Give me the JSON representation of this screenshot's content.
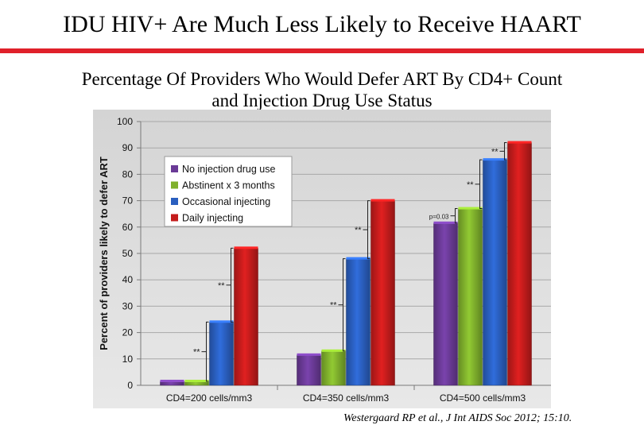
{
  "header": {
    "title": "IDU HIV+ Are Much Less Likely to Receive HAART",
    "accent_color": "#e0202a"
  },
  "chart_data": {
    "type": "bar",
    "title": "Percentage Of Providers Who Would Defer ART By CD4+ Count and Injection Drug Use Status",
    "title_lines": [
      "Percentage Of Providers Who Would Defer ART By CD4+ Count",
      "and Injection Drug Use Status"
    ],
    "ylabel": "Percent of providers likely to defer  ART",
    "xlabel": "",
    "ylim": [
      0,
      100
    ],
    "yticks": [
      0,
      10,
      20,
      30,
      40,
      50,
      60,
      70,
      80,
      90,
      100
    ],
    "grid": true,
    "legend_position": "top-left",
    "categories": [
      "CD4=200 cells/mm3",
      "CD4=350 cells/mm3",
      "CD4=500 cells/mm3"
    ],
    "series": [
      {
        "name": "No injection drug use",
        "color": "#6a3a96",
        "values": [
          1.5,
          11.5,
          61.5
        ]
      },
      {
        "name": "Abstinent x 3 months",
        "color": "#7fb02c",
        "values": [
          1.5,
          13,
          67
        ]
      },
      {
        "name": "Occasional injecting",
        "color": "#2a5fbf",
        "values": [
          24,
          48,
          85.5
        ]
      },
      {
        "name": "Daily injecting",
        "color": "#c41c1c",
        "values": [
          52,
          70,
          92
        ]
      }
    ],
    "annotations": [
      {
        "text": "**",
        "category": 0,
        "from_series": 1,
        "to_series": 2
      },
      {
        "text": "**",
        "category": 0,
        "from_series": 2,
        "to_series": 3
      },
      {
        "text": "**",
        "category": 1,
        "from_series": 1,
        "to_series": 2
      },
      {
        "text": "**",
        "category": 1,
        "from_series": 2,
        "to_series": 3
      },
      {
        "text": "p=0.03",
        "category": 2,
        "from_series": 0,
        "to_series": 1
      },
      {
        "text": "**",
        "category": 2,
        "from_series": 1,
        "to_series": 2
      },
      {
        "text": "**",
        "category": 2,
        "from_series": 2,
        "to_series": 3
      }
    ]
  },
  "citation": {
    "authors": "Westergaard RP et al.,",
    "journal": "J Int AIDS Soc",
    "year_ref": "2012; 15:10."
  }
}
